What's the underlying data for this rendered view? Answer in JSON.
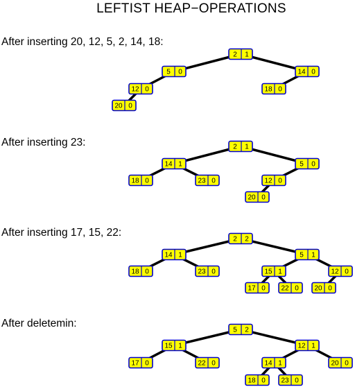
{
  "title": "LEFTIST HEAP−OPERATIONS",
  "stages": [
    {
      "caption": "After inserting 20, 12, 5, 2, 14, 18:",
      "nodes": [
        {
          "id": "a",
          "key": "2",
          "npl": "1"
        },
        {
          "id": "b",
          "key": "5",
          "npl": "0",
          "parent": "a"
        },
        {
          "id": "c",
          "key": "14",
          "npl": "0",
          "parent": "a"
        },
        {
          "id": "d",
          "key": "12",
          "npl": "0",
          "parent": "b"
        },
        {
          "id": "e",
          "key": "18",
          "npl": "0",
          "parent": "c"
        },
        {
          "id": "f",
          "key": "20",
          "npl": "0",
          "parent": "d"
        }
      ]
    },
    {
      "caption": "After inserting 23:",
      "nodes": [
        {
          "id": "a",
          "key": "2",
          "npl": "1"
        },
        {
          "id": "b",
          "key": "14",
          "npl": "1",
          "parent": "a"
        },
        {
          "id": "c",
          "key": "5",
          "npl": "0",
          "parent": "a"
        },
        {
          "id": "d",
          "key": "18",
          "npl": "0",
          "parent": "b"
        },
        {
          "id": "e",
          "key": "23",
          "npl": "0",
          "parent": "b"
        },
        {
          "id": "f",
          "key": "12",
          "npl": "0",
          "parent": "c"
        },
        {
          "id": "g",
          "key": "20",
          "npl": "0",
          "parent": "f"
        }
      ]
    },
    {
      "caption": "After inserting 17, 15, 22:",
      "nodes": [
        {
          "id": "a",
          "key": "2",
          "npl": "2"
        },
        {
          "id": "b",
          "key": "14",
          "npl": "1",
          "parent": "a"
        },
        {
          "id": "c",
          "key": "5",
          "npl": "1",
          "parent": "a"
        },
        {
          "id": "d",
          "key": "18",
          "npl": "0",
          "parent": "b"
        },
        {
          "id": "e",
          "key": "23",
          "npl": "0",
          "parent": "b"
        },
        {
          "id": "f",
          "key": "15",
          "npl": "1",
          "parent": "c"
        },
        {
          "id": "g",
          "key": "12",
          "npl": "0",
          "parent": "c"
        },
        {
          "id": "h",
          "key": "17",
          "npl": "0",
          "parent": "f"
        },
        {
          "id": "i",
          "key": "22",
          "npl": "0",
          "parent": "f"
        },
        {
          "id": "j",
          "key": "20",
          "npl": "0",
          "parent": "g"
        }
      ]
    },
    {
      "caption": "After deletemin:",
      "nodes": [
        {
          "id": "a",
          "key": "5",
          "npl": "2"
        },
        {
          "id": "b",
          "key": "15",
          "npl": "1",
          "parent": "a"
        },
        {
          "id": "c",
          "key": "12",
          "npl": "1",
          "parent": "a"
        },
        {
          "id": "d",
          "key": "17",
          "npl": "0",
          "parent": "b"
        },
        {
          "id": "e",
          "key": "22",
          "npl": "0",
          "parent": "b"
        },
        {
          "id": "f",
          "key": "14",
          "npl": "1",
          "parent": "c"
        },
        {
          "id": "g",
          "key": "20",
          "npl": "0",
          "parent": "c"
        },
        {
          "id": "h",
          "key": "18",
          "npl": "0",
          "parent": "f"
        },
        {
          "id": "i",
          "key": "23",
          "npl": "0",
          "parent": "f"
        }
      ]
    }
  ]
}
